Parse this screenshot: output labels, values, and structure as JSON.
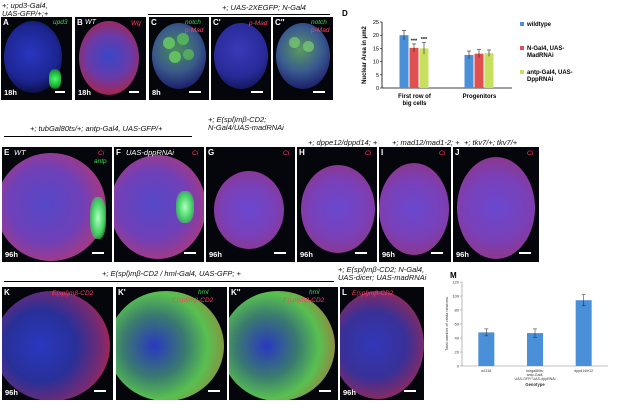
{
  "figure": {
    "top_left_genotype": [
      "+; upd3-Gal4,",
      "UAS-GFP/+;+"
    ],
    "row1_center_genotype": "+; UAS-2XEGFP; N-Gal4",
    "row2_left_genotype": "+; tubGal80ts/+; antp-Gal4, UAS-GFP/+",
    "row2_mid_genotype": [
      "+; E(spl)mβ-CD2;",
      "N-Gal4/UAS-madRNAi"
    ],
    "row3_genotype": "+; E(spl)mβ-CD2 / hml-Gal4, UAS-GFP; +",
    "row3_right_genotype": [
      "+; E(spl)mβ-CD2; N-Gal4,",
      "UAS-dicer; UAS-madRNAi"
    ]
  },
  "panels": [
    {
      "id": "A",
      "label": "A",
      "title": "",
      "channels": [
        "upd3"
      ],
      "age": "18h"
    },
    {
      "id": "B",
      "label": "B",
      "title": "WT",
      "channels": [
        "Wg"
      ],
      "age": "18h"
    },
    {
      "id": "C",
      "label": "C",
      "title": "",
      "channels": [
        "notch",
        "p-Mad"
      ],
      "age": "8h"
    },
    {
      "id": "C1",
      "label": "C'",
      "title": "",
      "channels": [
        "p-Mad"
      ],
      "age": ""
    },
    {
      "id": "C2",
      "label": "C''",
      "title": "",
      "channels": [
        "notch",
        "p-Mad"
      ],
      "age": ""
    },
    {
      "id": "E",
      "label": "E",
      "title": "WT",
      "channels": [
        "Ci",
        "antp"
      ],
      "age": "96h"
    },
    {
      "id": "F",
      "label": "F",
      "title": "UAS-dppRNAi",
      "channels": [
        "Ci"
      ],
      "age": ""
    },
    {
      "id": "G",
      "label": "G",
      "title": "",
      "channels": [
        "Ci"
      ],
      "age": "96h"
    },
    {
      "id": "H",
      "label": "H",
      "title": "+; dppe12/dppd14; +",
      "channels": [
        "Ci"
      ],
      "age": "96h"
    },
    {
      "id": "I",
      "label": "I",
      "title": "+; mad12/mad1-2; +",
      "channels": [
        "Ci"
      ],
      "age": "96h"
    },
    {
      "id": "J",
      "label": "J",
      "title": "+; tkv7/+; tkv7/+",
      "channels": [
        "Ci"
      ],
      "age": "96h"
    },
    {
      "id": "K",
      "label": "K",
      "title": "",
      "channels": [
        "E(spl)mβ-CD2"
      ],
      "age": "96h"
    },
    {
      "id": "K1",
      "label": "K'",
      "title": "",
      "channels": [
        "hml",
        "E(spl)mβ-CD2"
      ],
      "age": ""
    },
    {
      "id": "K2",
      "label": "K''",
      "title": "",
      "channels": [
        "hml",
        "E(spl)mβ-CD2"
      ],
      "age": ""
    },
    {
      "id": "L",
      "label": "L",
      "title": "",
      "channels": [
        "E(spl)mβ-CD2"
      ],
      "age": "96h"
    }
  ],
  "colors": {
    "blue": "#2a3ac8",
    "red": "#d42040",
    "green": "#32d04a",
    "bar_wildtype": "#4a90d9",
    "bar_ngal4": "#e05050",
    "bar_antp": "#c8e060"
  },
  "chart_data": [
    {
      "panel": "D",
      "type": "bar",
      "title": "",
      "ylabel": "Nuclear Area in μm2",
      "ylim": [
        0,
        25
      ],
      "yticks": [
        0,
        5,
        10,
        15,
        20,
        25
      ],
      "categories": [
        "First row of big cells",
        "Progenitors"
      ],
      "series": [
        {
          "name": "wildtype",
          "values": [
            20,
            12.5
          ],
          "errors": [
            1.8,
            1.5
          ]
        },
        {
          "name": "N-Gal4, UAS-MadRNAi",
          "values": [
            15.2,
            13
          ],
          "errors": [
            1.5,
            1.5
          ]
        },
        {
          "name": "antp-Gal4, UAS-DppRNAi",
          "values": [
            15,
            13.2
          ],
          "errors": [
            2.2,
            1.2
          ]
        }
      ],
      "significance": [
        "***",
        "***"
      ],
      "legend": "right"
    },
    {
      "panel": "M",
      "type": "bar",
      "title": "",
      "ylabel": "Total number of crista neurons",
      "xlabel": "Genotype",
      "ylim": [
        0,
        120
      ],
      "yticks": [
        0,
        20,
        40,
        60,
        80,
        100,
        120
      ],
      "categories": [
        "w1118",
        "tubgal80ts; antp-Gal4, UAS-GFP/ UAS-dppRNAi",
        "dppd14/e12"
      ],
      "values": [
        48,
        47,
        94
      ],
      "errors": [
        5,
        6,
        8
      ]
    }
  ]
}
